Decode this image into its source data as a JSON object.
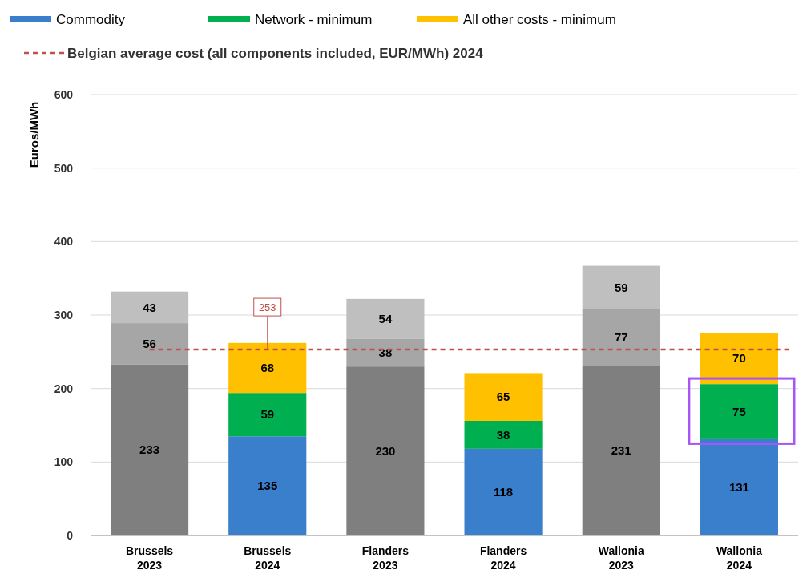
{
  "chart_data": {
    "type": "bar",
    "stacked": true,
    "ylabel": "Euros/MWh",
    "categories": [
      "Brussels 2023",
      "Brussels 2024",
      "Flanders 2023",
      "Flanders 2024",
      "Wallonia 2023",
      "Wallonia 2024"
    ],
    "series": [
      {
        "name": "Commodity",
        "color": "#3a7fcc",
        "colors": [
          "#7f7f7f",
          "#3a7fcc",
          "#7f7f7f",
          "#3a7fcc",
          "#7f7f7f",
          "#3a7fcc"
        ],
        "values": [
          233,
          135,
          230,
          118,
          231,
          131
        ]
      },
      {
        "name": "Network - minimum",
        "color": "#00b050",
        "colors": [
          "#a6a6a6",
          "#00b050",
          "#a6a6a6",
          "#00b050",
          "#a6a6a6",
          "#00b050"
        ],
        "values": [
          56,
          59,
          38,
          38,
          77,
          75
        ]
      },
      {
        "name": "All other costs - minimum",
        "color": "#ffc000",
        "colors": [
          "#bfbfbf",
          "#ffc000",
          "#bfbfbf",
          "#ffc000",
          "#bfbfbf",
          "#ffc000"
        ],
        "values": [
          43,
          68,
          54,
          65,
          59,
          70
        ]
      }
    ],
    "ylim": [
      0,
      600
    ],
    "yticks": [
      0,
      100,
      200,
      300,
      400,
      500,
      600
    ],
    "grid": "y",
    "legend": "top left",
    "data_labels": true,
    "ref_lines": [
      {
        "axis": "y",
        "value": 253,
        "label": "Belgian average cost (all components included, EUR/MWh) 2024",
        "color": "#c0504d",
        "line_style": "dashed"
      }
    ],
    "annotations": [
      {
        "text": "253",
        "x": "Brussels 2024",
        "y": 253
      }
    ]
  }
}
